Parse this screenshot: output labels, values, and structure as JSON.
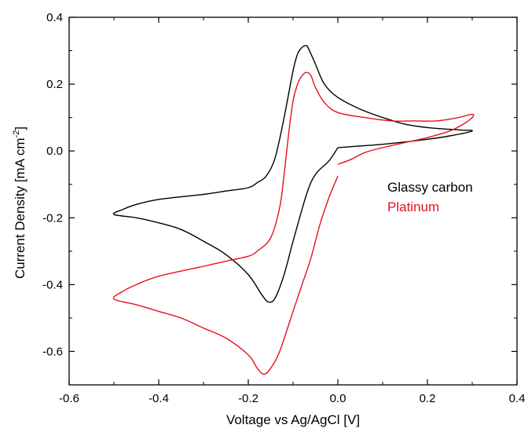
{
  "chart_data": {
    "type": "line",
    "xlabel": "Voltage vs Ag/AgCl [V]",
    "ylabel": "Current Density [mA cm",
    "ylabel_sup": "-2",
    "ylabel_close": "]",
    "xlim": [
      -0.6,
      0.4
    ],
    "ylim": [
      -0.7,
      0.4
    ],
    "x_ticks": [
      -0.6,
      -0.4,
      -0.2,
      0.0,
      0.2,
      0.4
    ],
    "x_tick_labels": [
      "-0.6",
      "-0.4",
      "-0.2",
      "0.0",
      "0.2",
      "0.4"
    ],
    "y_ticks": [
      -0.6,
      -0.4,
      -0.2,
      0.0,
      0.2,
      0.4
    ],
    "y_tick_labels": [
      "-0.6",
      "-0.4",
      "-0.2",
      "0.0",
      "0.2",
      "0.4"
    ],
    "grid": false,
    "legend_position": "right",
    "series": [
      {
        "name": "Glassy carbon",
        "color": "#000000",
        "points": [
          [
            0.0,
            0.01
          ],
          [
            0.1,
            0.02
          ],
          [
            0.2,
            0.035
          ],
          [
            0.25,
            0.045
          ],
          [
            0.3,
            0.06
          ],
          [
            0.27,
            0.063
          ],
          [
            0.2,
            0.07
          ],
          [
            0.15,
            0.08
          ],
          [
            0.1,
            0.1
          ],
          [
            0.05,
            0.125
          ],
          [
            0.0,
            0.16
          ],
          [
            -0.03,
            0.2
          ],
          [
            -0.05,
            0.26
          ],
          [
            -0.065,
            0.305
          ],
          [
            -0.07,
            0.315
          ],
          [
            -0.08,
            0.31
          ],
          [
            -0.09,
            0.29
          ],
          [
            -0.1,
            0.24
          ],
          [
            -0.12,
            0.1
          ],
          [
            -0.14,
            -0.02
          ],
          [
            -0.16,
            -0.075
          ],
          [
            -0.18,
            -0.095
          ],
          [
            -0.2,
            -0.11
          ],
          [
            -0.25,
            -0.12
          ],
          [
            -0.3,
            -0.13
          ],
          [
            -0.4,
            -0.145
          ],
          [
            -0.45,
            -0.16
          ],
          [
            -0.48,
            -0.175
          ],
          [
            -0.5,
            -0.19
          ],
          [
            -0.45,
            -0.2
          ],
          [
            -0.4,
            -0.215
          ],
          [
            -0.35,
            -0.235
          ],
          [
            -0.3,
            -0.27
          ],
          [
            -0.25,
            -0.31
          ],
          [
            -0.2,
            -0.37
          ],
          [
            -0.17,
            -0.43
          ],
          [
            -0.155,
            -0.452
          ],
          [
            -0.14,
            -0.44
          ],
          [
            -0.12,
            -0.37
          ],
          [
            -0.1,
            -0.27
          ],
          [
            -0.07,
            -0.13
          ],
          [
            -0.05,
            -0.07
          ],
          [
            -0.02,
            -0.03
          ],
          [
            0.0,
            0.01
          ]
        ]
      },
      {
        "name": "Platinum",
        "color": "#e8101d",
        "points": [
          [
            0.0,
            -0.04
          ],
          [
            0.03,
            -0.025
          ],
          [
            0.06,
            -0.005
          ],
          [
            0.1,
            0.01
          ],
          [
            0.15,
            0.025
          ],
          [
            0.2,
            0.04
          ],
          [
            0.25,
            0.06
          ],
          [
            0.28,
            0.08
          ],
          [
            0.3,
            0.1
          ],
          [
            0.3,
            0.11
          ],
          [
            0.27,
            0.1
          ],
          [
            0.22,
            0.09
          ],
          [
            0.17,
            0.09
          ],
          [
            0.12,
            0.09
          ],
          [
            0.06,
            0.1
          ],
          [
            0.0,
            0.115
          ],
          [
            -0.03,
            0.145
          ],
          [
            -0.05,
            0.19
          ],
          [
            -0.06,
            0.225
          ],
          [
            -0.07,
            0.235
          ],
          [
            -0.08,
            0.225
          ],
          [
            -0.09,
            0.2
          ],
          [
            -0.1,
            0.15
          ],
          [
            -0.11,
            0.05
          ],
          [
            -0.12,
            -0.07
          ],
          [
            -0.13,
            -0.17
          ],
          [
            -0.15,
            -0.26
          ],
          [
            -0.18,
            -0.3
          ],
          [
            -0.2,
            -0.315
          ],
          [
            -0.25,
            -0.33
          ],
          [
            -0.3,
            -0.345
          ],
          [
            -0.4,
            -0.375
          ],
          [
            -0.45,
            -0.4
          ],
          [
            -0.48,
            -0.42
          ],
          [
            -0.5,
            -0.443
          ],
          [
            -0.45,
            -0.46
          ],
          [
            -0.4,
            -0.48
          ],
          [
            -0.35,
            -0.5
          ],
          [
            -0.3,
            -0.53
          ],
          [
            -0.25,
            -0.56
          ],
          [
            -0.2,
            -0.61
          ],
          [
            -0.18,
            -0.65
          ],
          [
            -0.165,
            -0.668
          ],
          [
            -0.15,
            -0.65
          ],
          [
            -0.13,
            -0.6
          ],
          [
            -0.1,
            -0.48
          ],
          [
            -0.08,
            -0.4
          ],
          [
            -0.06,
            -0.32
          ],
          [
            -0.04,
            -0.22
          ],
          [
            -0.02,
            -0.14
          ],
          [
            0.0,
            -0.075
          ]
        ]
      }
    ]
  }
}
